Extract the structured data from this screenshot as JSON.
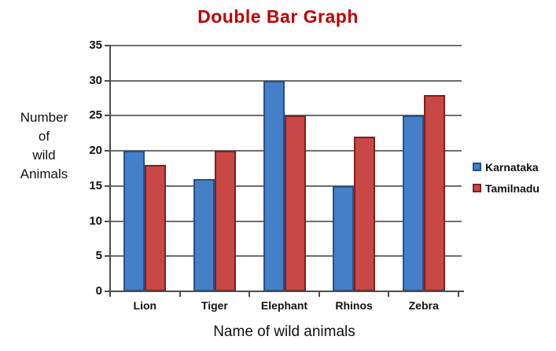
{
  "chart_data": {
    "type": "bar",
    "title": "Double Bar Graph",
    "title_color": "#C00000",
    "xlabel": "Name of wild animals",
    "ylabel": "Number of wild Animals",
    "ylabel_lines": [
      "Number",
      "of",
      "wild",
      "Animals"
    ],
    "categories": [
      "Lion",
      "Tiger",
      "Elephant",
      "Rhinos",
      "Zebra"
    ],
    "series": [
      {
        "name": "Karnataka",
        "color": "#4480C8",
        "border_color": "#25508C",
        "values": [
          20,
          16,
          30,
          15,
          25
        ]
      },
      {
        "name": "Tamilnadu",
        "color": "#C94745",
        "border_color": "#7E211E",
        "values": [
          18,
          20,
          25,
          22,
          28
        ]
      }
    ],
    "ylim": [
      0,
      35
    ],
    "ytick_step": 5,
    "yticks": [
      0,
      5,
      10,
      15,
      20,
      25,
      30,
      35
    ],
    "grid": "horizontal",
    "legend_position": "right"
  }
}
